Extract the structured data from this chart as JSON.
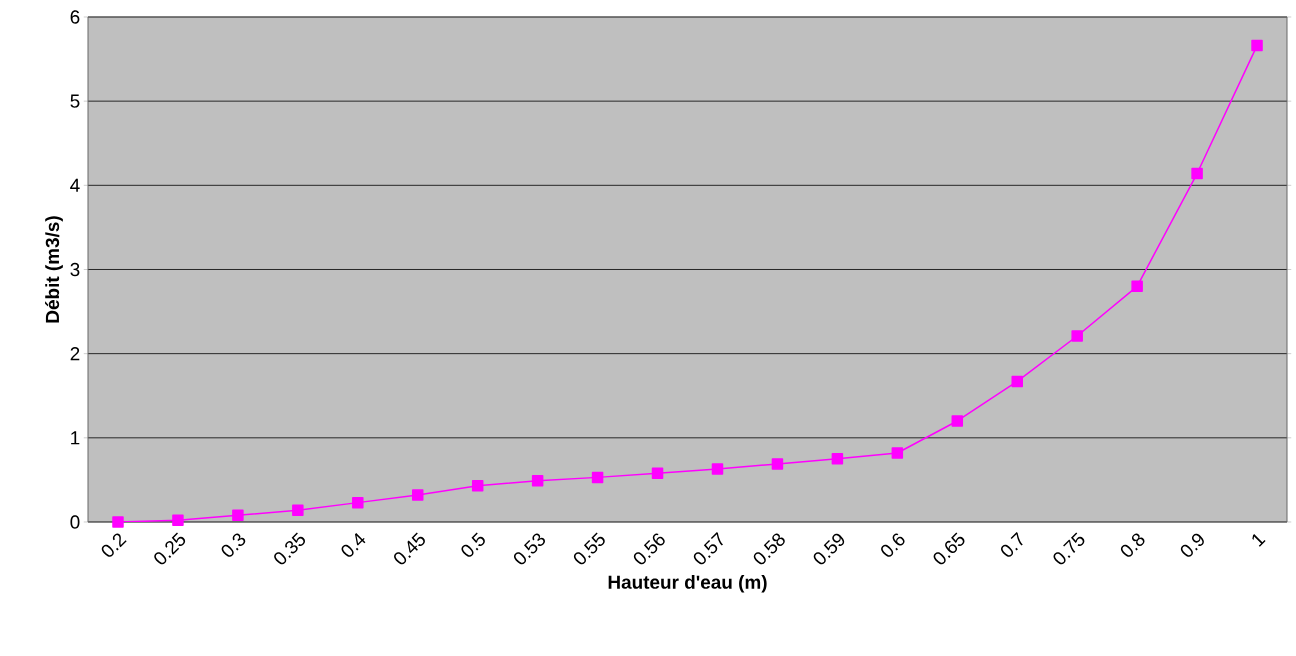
{
  "chart_data": {
    "type": "line",
    "xlabel": "Hauteur d'eau (m)",
    "ylabel": "Débit (m3/s)",
    "categories": [
      "0.2",
      "0.25",
      "0.3",
      "0.35",
      "0.4",
      "0.45",
      "0.5",
      "0.53",
      "0.55",
      "0.56",
      "0.57",
      "0.58",
      "0.59",
      "0.6",
      "0.65",
      "0.7",
      "0.75",
      "0.8",
      "0.9",
      "1"
    ],
    "series": [
      {
        "color": "#ff00ff",
        "values": [
          0,
          0.02,
          0.08,
          0.14,
          0.23,
          0.32,
          0.43,
          0.49,
          0.53,
          0.58,
          0.63,
          0.69,
          0.75,
          0.82,
          1.2,
          1.67,
          2.21,
          2.8,
          4.14,
          5.66
        ]
      }
    ],
    "ylim": [
      0,
      6
    ],
    "yticks": [
      0,
      1,
      2,
      3,
      4,
      5,
      6
    ],
    "grid": "y",
    "marker": "square",
    "line_style": "solid"
  }
}
